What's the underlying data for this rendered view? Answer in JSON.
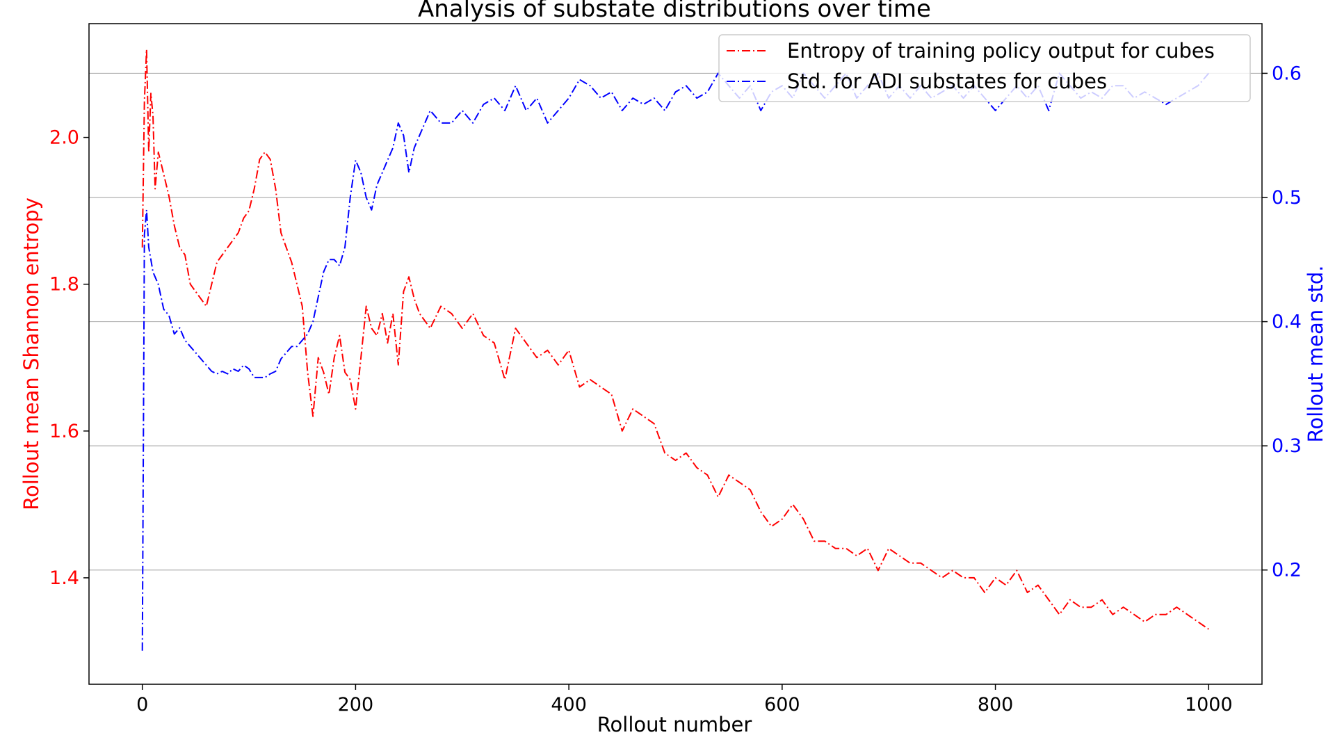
{
  "chart_data": {
    "type": "line",
    "title": "Analysis of substate distributions over time",
    "xlabel": "Rollout number",
    "ylabel_left": "Rollout mean Shannon entropy",
    "ylabel_right": "Rollout mean std.",
    "xlim": [
      -50,
      1050
    ],
    "ylim_left": [
      1.255,
      2.155
    ],
    "ylim_right": [
      0.108,
      0.64
    ],
    "xticks": [
      0,
      200,
      400,
      600,
      800,
      1000
    ],
    "xtick_labels": [
      "0",
      "200",
      "400",
      "600",
      "800",
      "1000"
    ],
    "yticks_left": [
      1.4,
      1.6,
      1.8,
      2.0
    ],
    "ytick_labels_left": [
      "1.4",
      "1.6",
      "1.8",
      "2.0"
    ],
    "yticks_right": [
      0.2,
      0.3,
      0.4,
      0.5,
      0.6
    ],
    "ytick_labels_right": [
      "0.2",
      "0.3",
      "0.4",
      "0.5",
      "0.6"
    ],
    "grid": "horizontal lines at right-axis ticks",
    "legend_position": "top-right",
    "colors": {
      "left": "#ff0000",
      "right": "#0000ff"
    },
    "series": [
      {
        "name": "Entropy of training policy output for cubes",
        "axis": "left",
        "color": "#ff0000",
        "linestyle": "dashdot",
        "x": [
          0,
          2,
          4,
          6,
          8,
          10,
          12,
          15,
          20,
          25,
          30,
          35,
          40,
          45,
          50,
          55,
          60,
          65,
          70,
          75,
          80,
          85,
          90,
          95,
          100,
          105,
          110,
          115,
          120,
          125,
          130,
          135,
          140,
          145,
          150,
          155,
          160,
          165,
          170,
          175,
          180,
          185,
          190,
          195,
          200,
          205,
          210,
          215,
          220,
          225,
          230,
          235,
          240,
          245,
          250,
          255,
          260,
          270,
          280,
          290,
          300,
          310,
          320,
          330,
          340,
          350,
          360,
          370,
          380,
          390,
          400,
          410,
          420,
          430,
          440,
          450,
          460,
          470,
          480,
          490,
          500,
          510,
          520,
          530,
          540,
          550,
          560,
          570,
          580,
          590,
          600,
          610,
          620,
          630,
          640,
          650,
          660,
          670,
          680,
          690,
          700,
          710,
          720,
          730,
          740,
          750,
          760,
          770,
          780,
          790,
          800,
          810,
          820,
          830,
          840,
          850,
          860,
          870,
          880,
          890,
          900,
          910,
          920,
          930,
          940,
          950,
          960,
          970,
          980,
          990,
          1000
        ],
        "values": [
          1.85,
          2.05,
          2.12,
          1.98,
          2.06,
          2.03,
          1.93,
          1.98,
          1.95,
          1.92,
          1.88,
          1.85,
          1.84,
          1.8,
          1.79,
          1.78,
          1.77,
          1.8,
          1.83,
          1.84,
          1.85,
          1.86,
          1.87,
          1.89,
          1.9,
          1.93,
          1.97,
          1.98,
          1.97,
          1.93,
          1.87,
          1.85,
          1.83,
          1.8,
          1.77,
          1.68,
          1.62,
          1.7,
          1.68,
          1.65,
          1.7,
          1.73,
          1.68,
          1.67,
          1.63,
          1.7,
          1.77,
          1.74,
          1.73,
          1.76,
          1.72,
          1.76,
          1.69,
          1.79,
          1.81,
          1.78,
          1.76,
          1.74,
          1.77,
          1.76,
          1.74,
          1.76,
          1.73,
          1.72,
          1.67,
          1.74,
          1.72,
          1.7,
          1.71,
          1.69,
          1.71,
          1.66,
          1.67,
          1.66,
          1.65,
          1.6,
          1.63,
          1.62,
          1.61,
          1.57,
          1.56,
          1.57,
          1.55,
          1.54,
          1.51,
          1.54,
          1.53,
          1.52,
          1.49,
          1.47,
          1.48,
          1.5,
          1.48,
          1.45,
          1.45,
          1.44,
          1.44,
          1.43,
          1.44,
          1.41,
          1.44,
          1.43,
          1.42,
          1.42,
          1.41,
          1.4,
          1.41,
          1.4,
          1.4,
          1.38,
          1.4,
          1.39,
          1.41,
          1.38,
          1.39,
          1.37,
          1.35,
          1.37,
          1.36,
          1.36,
          1.37,
          1.35,
          1.36,
          1.35,
          1.34,
          1.35,
          1.35,
          1.36,
          1.35,
          1.34,
          1.33
        ]
      },
      {
        "name": "Std. for ADI substates for cubes",
        "axis": "right",
        "color": "#0000ff",
        "linestyle": "dashdot",
        "x": [
          0,
          2,
          4,
          6,
          8,
          10,
          15,
          20,
          25,
          30,
          35,
          40,
          45,
          50,
          55,
          60,
          65,
          70,
          75,
          80,
          85,
          90,
          95,
          100,
          105,
          110,
          115,
          120,
          125,
          130,
          135,
          140,
          145,
          150,
          155,
          160,
          165,
          170,
          175,
          180,
          185,
          190,
          195,
          200,
          205,
          210,
          215,
          220,
          225,
          230,
          235,
          240,
          245,
          250,
          255,
          260,
          270,
          280,
          290,
          300,
          310,
          320,
          330,
          340,
          350,
          360,
          370,
          380,
          390,
          400,
          410,
          420,
          430,
          440,
          450,
          460,
          470,
          480,
          490,
          500,
          510,
          520,
          530,
          540,
          550,
          560,
          570,
          580,
          590,
          600,
          610,
          620,
          630,
          640,
          650,
          660,
          670,
          680,
          690,
          700,
          710,
          720,
          730,
          740,
          750,
          760,
          770,
          780,
          790,
          800,
          810,
          820,
          830,
          840,
          850,
          860,
          870,
          880,
          890,
          900,
          910,
          920,
          930,
          940,
          950,
          960,
          970,
          980,
          990,
          1000
        ],
        "values": [
          0.135,
          0.47,
          0.49,
          0.46,
          0.45,
          0.44,
          0.43,
          0.41,
          0.405,
          0.39,
          0.395,
          0.385,
          0.38,
          0.375,
          0.37,
          0.365,
          0.36,
          0.358,
          0.36,
          0.358,
          0.362,
          0.36,
          0.365,
          0.362,
          0.355,
          0.355,
          0.355,
          0.358,
          0.36,
          0.37,
          0.375,
          0.38,
          0.38,
          0.385,
          0.39,
          0.4,
          0.42,
          0.44,
          0.45,
          0.45,
          0.445,
          0.46,
          0.5,
          0.53,
          0.52,
          0.5,
          0.49,
          0.51,
          0.52,
          0.53,
          0.54,
          0.56,
          0.55,
          0.52,
          0.54,
          0.55,
          0.57,
          0.56,
          0.56,
          0.57,
          0.56,
          0.575,
          0.58,
          0.57,
          0.59,
          0.57,
          0.58,
          0.56,
          0.57,
          0.58,
          0.595,
          0.59,
          0.58,
          0.585,
          0.57,
          0.58,
          0.575,
          0.58,
          0.57,
          0.585,
          0.59,
          0.58,
          0.585,
          0.6,
          0.59,
          0.58,
          0.59,
          0.57,
          0.585,
          0.59,
          0.58,
          0.6,
          0.59,
          0.58,
          0.59,
          0.6,
          0.58,
          0.59,
          0.6,
          0.58,
          0.59,
          0.58,
          0.59,
          0.58,
          0.585,
          0.59,
          0.58,
          0.59,
          0.58,
          0.57,
          0.58,
          0.59,
          0.58,
          0.59,
          0.57,
          0.6,
          0.59,
          0.58,
          0.585,
          0.58,
          0.59,
          0.59,
          0.58,
          0.585,
          0.58,
          0.575,
          0.58,
          0.585,
          0.59,
          0.6
        ]
      }
    ]
  }
}
